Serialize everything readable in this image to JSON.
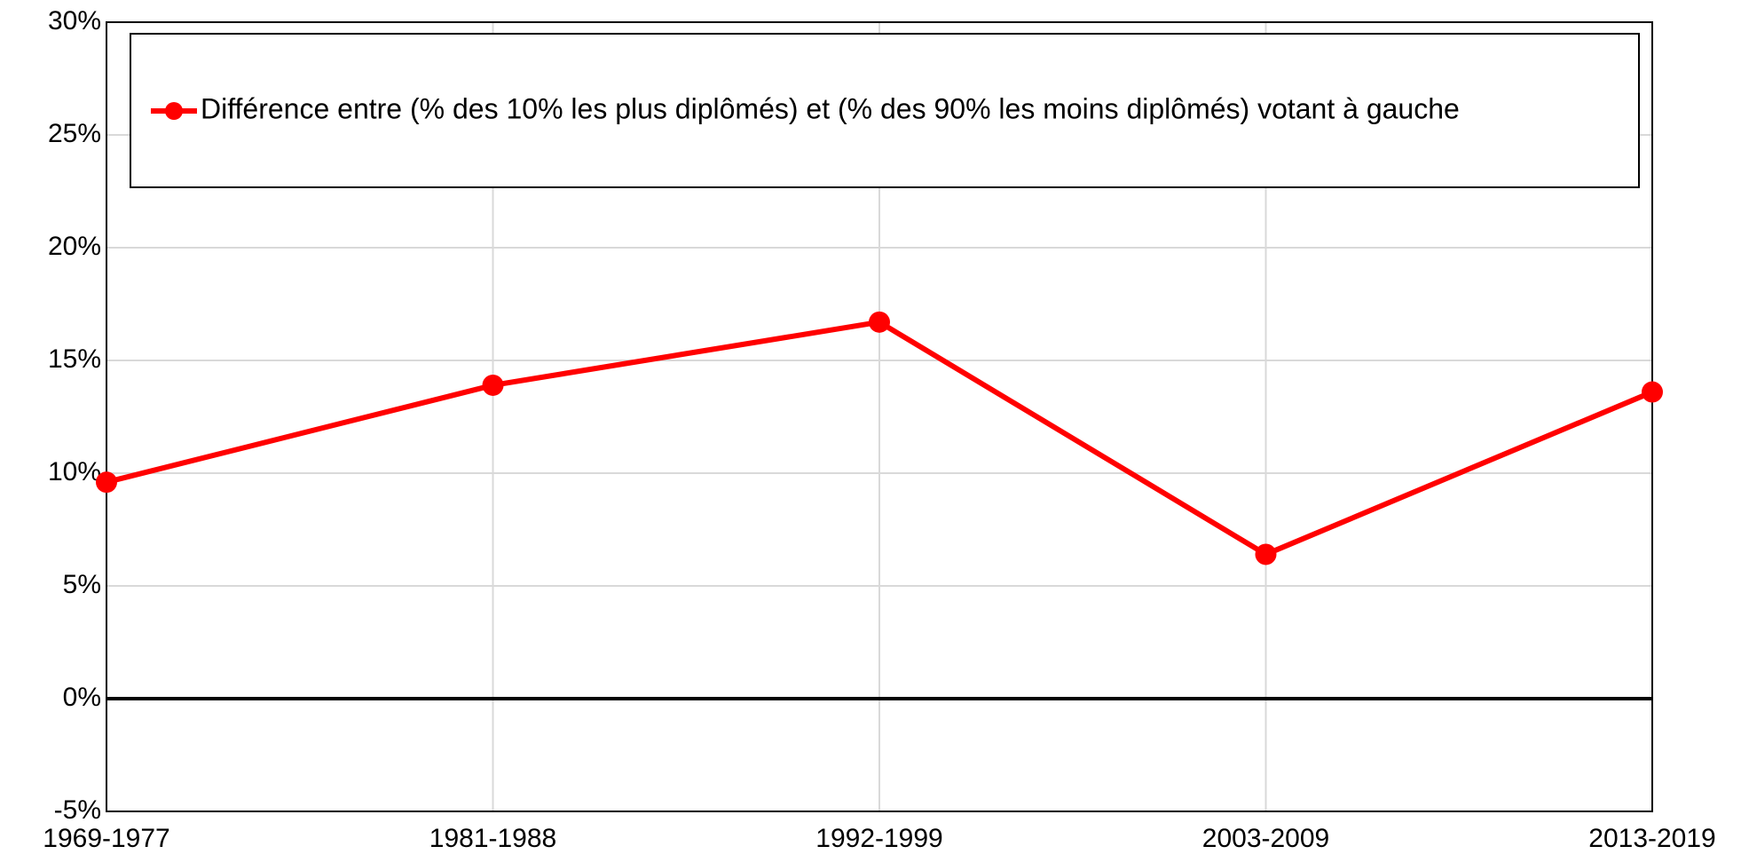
{
  "chart_data": {
    "type": "line",
    "categories": [
      "1969-1977",
      "1981-1988",
      "1992-1999",
      "2003-2009",
      "2013-2019"
    ],
    "series": [
      {
        "name": "Différence entre (% des 10% les plus diplômés) et (% des 90% les moins diplômés) votant à gauche",
        "color": "#ff0000",
        "values": [
          9.6,
          13.9,
          16.7,
          6.4,
          13.6
        ]
      }
    ],
    "ylim": [
      -5,
      30
    ],
    "yticks": [
      {
        "value": -5,
        "label": "-5%"
      },
      {
        "value": 0,
        "label": "0%"
      },
      {
        "value": 5,
        "label": "5%"
      },
      {
        "value": 10,
        "label": "10%"
      },
      {
        "value": 15,
        "label": "15%"
      },
      {
        "value": 20,
        "label": "20%"
      },
      {
        "value": 25,
        "label": "25%"
      },
      {
        "value": 30,
        "label": "30%"
      }
    ],
    "grid": true,
    "legend": "top"
  }
}
